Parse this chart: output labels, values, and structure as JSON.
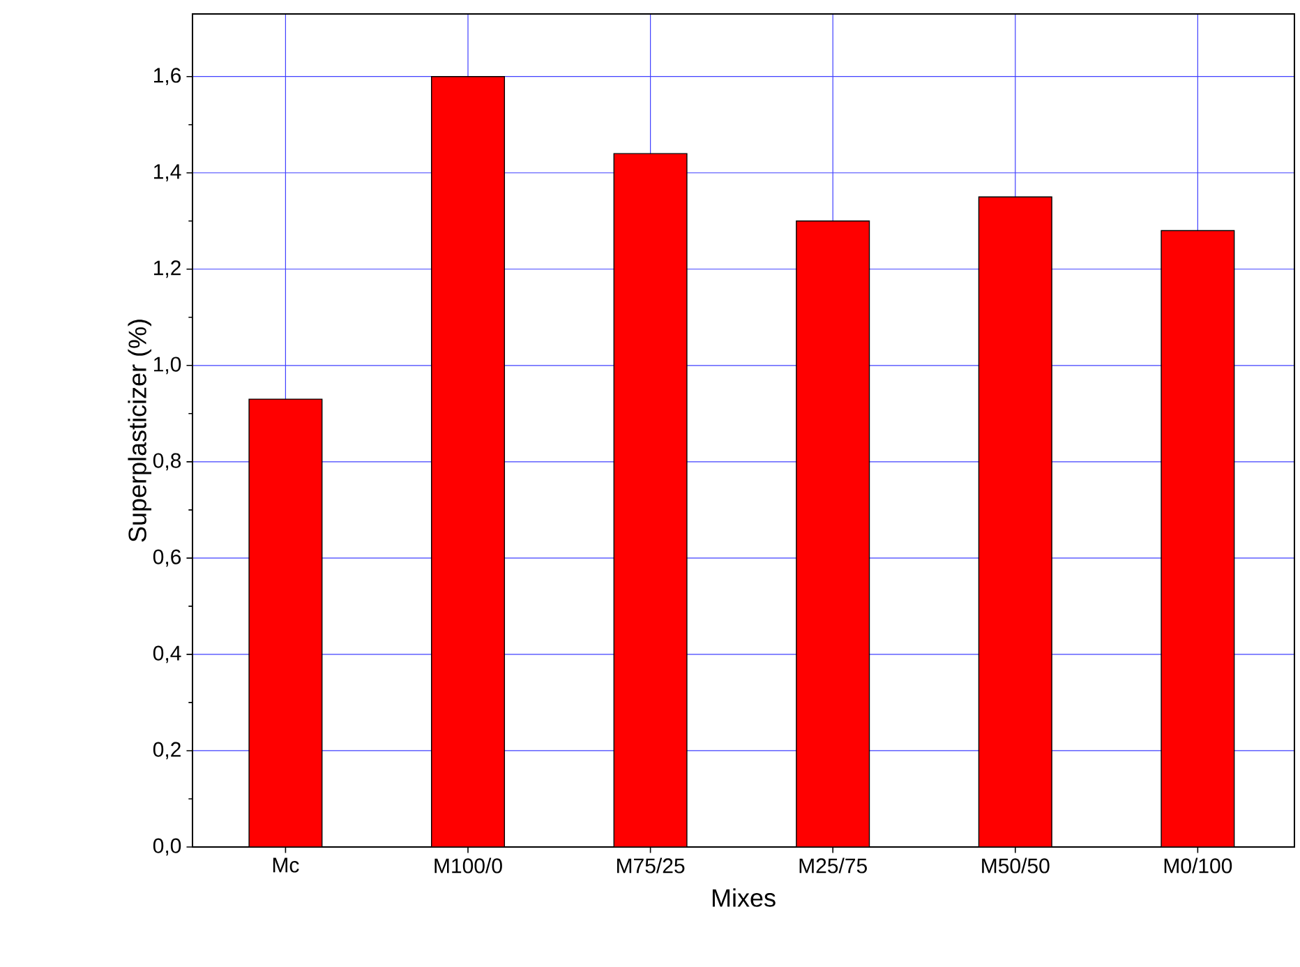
{
  "chart_data": {
    "type": "bar",
    "xlabel": "Mixes",
    "ylabel": "Superplasticizer (%)",
    "categories": [
      "Mc",
      "M100/0",
      "M75/25",
      "M25/75",
      "M50/50",
      "M0/100"
    ],
    "values": [
      0.93,
      1.6,
      1.44,
      1.3,
      1.35,
      1.28
    ],
    "color": "#ff0000",
    "ylim": [
      0,
      1.73
    ],
    "yticks": [
      {
        "value": 0,
        "label": "0,0"
      },
      {
        "value": 0.2,
        "label": "0,2"
      },
      {
        "value": 0.4,
        "label": "0,4"
      },
      {
        "value": 0.6,
        "label": "0,6"
      },
      {
        "value": 0.8,
        "label": "0,8"
      },
      {
        "value": 1.0,
        "label": "1,0"
      },
      {
        "value": 1.2,
        "label": "1,2"
      },
      {
        "value": 1.4,
        "label": "1,4"
      },
      {
        "value": 1.6,
        "label": "1,6"
      }
    ],
    "grid": true
  }
}
